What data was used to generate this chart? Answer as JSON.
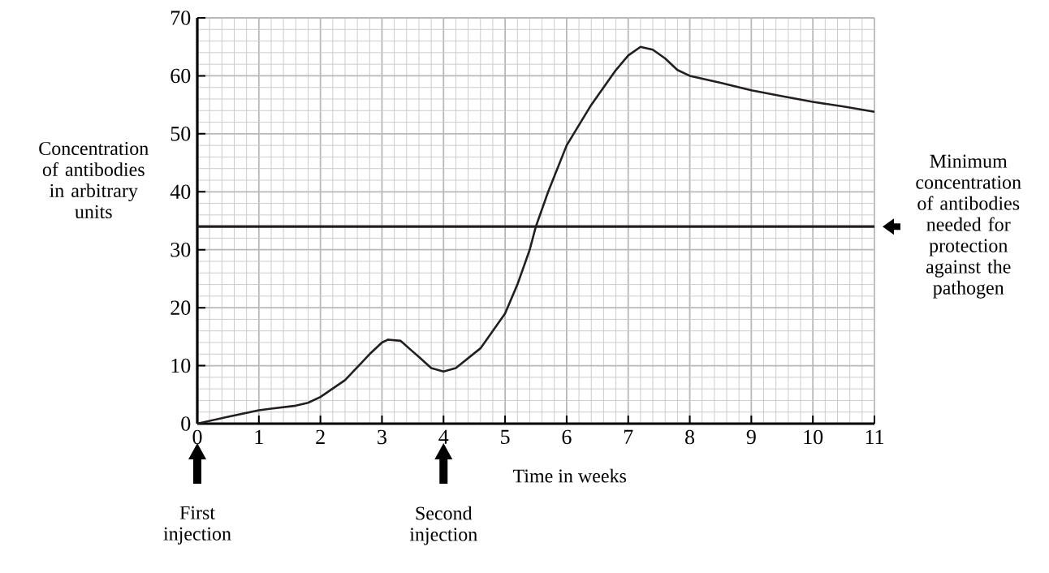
{
  "chart_data": {
    "type": "line",
    "xlabel": "Time in weeks",
    "ylabel": "Concentration of antibodies in arbitrary units",
    "x": [
      0,
      0.5,
      1,
      1.2,
      1.6,
      1.8,
      2,
      2.4,
      2.8,
      3,
      3.1,
      3.3,
      3.6,
      3.8,
      4,
      4.2,
      4.6,
      5,
      5.2,
      5.4,
      5.5,
      5.7,
      6,
      6.4,
      6.8,
      7,
      7.2,
      7.4,
      7.6,
      7.8,
      8,
      8.5,
      9,
      9.5,
      10,
      10.5,
      11
    ],
    "series": [
      {
        "color": "#231f20",
        "values": [
          0,
          1.2,
          2.3,
          2.6,
          3.1,
          3.6,
          4.6,
          7.5,
          12,
          14,
          14.5,
          14.3,
          11.5,
          9.6,
          9,
          9.6,
          13,
          19,
          24,
          30,
          34,
          40,
          48,
          55,
          61,
          63.5,
          65,
          64.5,
          63,
          61,
          60,
          58.8,
          57.5,
          56.5,
          55.5,
          54.7,
          53.8
        ]
      }
    ],
    "xlim": [
      0,
      11
    ],
    "ylim": [
      0,
      70
    ],
    "xticks": [
      0,
      1,
      2,
      3,
      4,
      5,
      6,
      7,
      8,
      9,
      10,
      11
    ],
    "yticks": [
      0,
      10,
      20,
      30,
      40,
      50,
      60,
      70
    ],
    "grid": true,
    "marker": "none",
    "line_style": "solid",
    "ref_lines": [
      {
        "axis": "y",
        "value": 34,
        "label": "Minimum concentration of antibodies needed for protection against the pathogen",
        "color": "#231f20"
      }
    ],
    "annotations": [
      "First injection",
      "Second injection"
    ]
  }
}
